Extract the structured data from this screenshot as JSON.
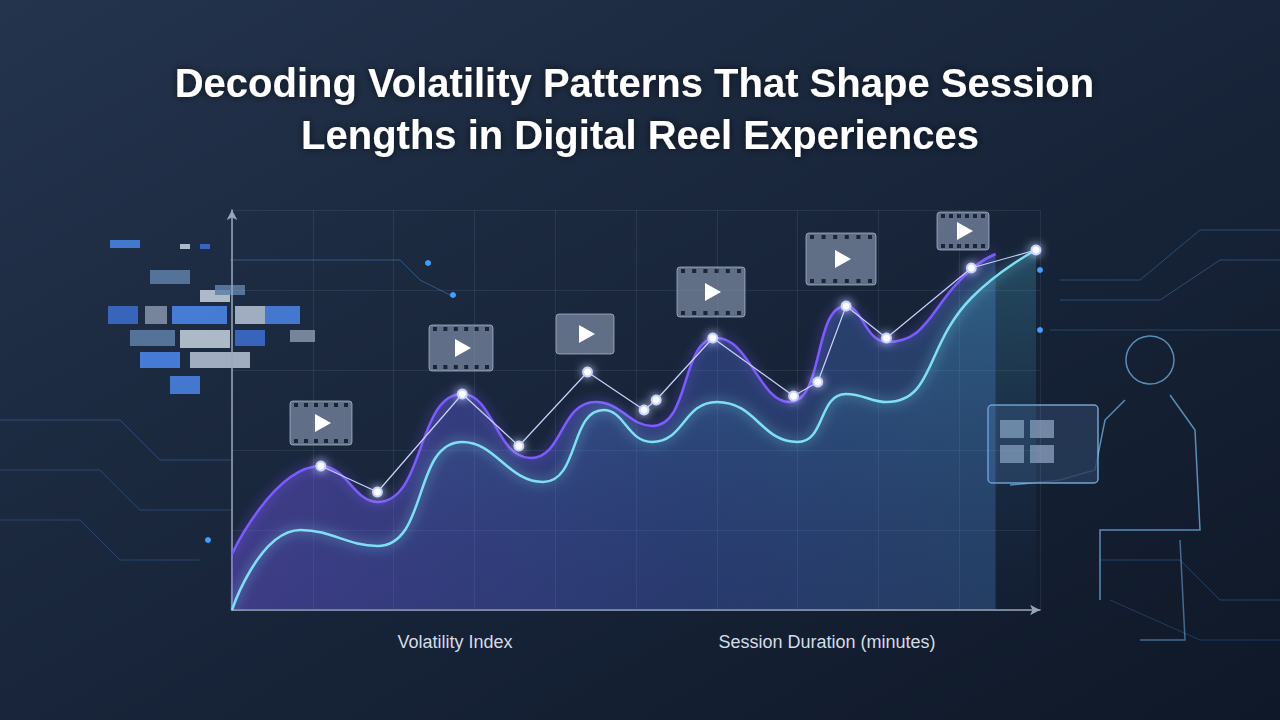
{
  "chart_data": {
    "type": "line",
    "title": "Decoding Volatility Patterns That Shape Session Lengths in Digital Reel Experiences",
    "annotations": [
      {
        "text": "Volatility Index"
      },
      {
        "text": "Session Duration (minutes)"
      }
    ],
    "xlim": [
      0,
      100
    ],
    "xticks": [
      0,
      10,
      20,
      30,
      40,
      50,
      60,
      70,
      80,
      90,
      100
    ],
    "ylim": [
      0,
      100
    ],
    "yticks": [
      0,
      20,
      40,
      60,
      80,
      100
    ],
    "grid": true,
    "tick_labels": false,
    "series": [
      {
        "type": "line",
        "color": "#7c5cff",
        "marker": "none",
        "line_style": "solid",
        "x": [
          0,
          11,
          18,
          28.5,
          37,
          45,
          52,
          60,
          69,
          76,
          81,
          92,
          94.5
        ],
        "values": [
          14,
          36,
          27,
          54,
          38,
          52,
          46,
          68,
          52,
          76,
          67,
          86,
          89
        ]
      },
      {
        "type": "line",
        "color": "#7fe0f5",
        "marker": "none",
        "line_style": "solid",
        "x": [
          0,
          8.5,
          18,
          28.5,
          38.5,
          46,
          52,
          60,
          70,
          76,
          81,
          91.5,
          99.5
        ],
        "values": [
          0,
          20,
          16,
          42,
          32,
          50,
          42,
          52,
          42,
          54,
          52,
          78,
          90
        ]
      },
      {
        "type": "line",
        "color": "#c9d3ff",
        "marker": "circle",
        "line_style": "solid",
        "x": [
          11,
          18,
          28.5,
          35.5,
          44,
          51,
          52.5,
          59.5,
          69.5,
          72.5,
          76,
          81,
          91.5,
          99.5
        ],
        "values": [
          36,
          29.5,
          54,
          41,
          59.5,
          50,
          52.5,
          68,
          53.5,
          57,
          76,
          68,
          85.5,
          90
        ]
      }
    ]
  }
}
